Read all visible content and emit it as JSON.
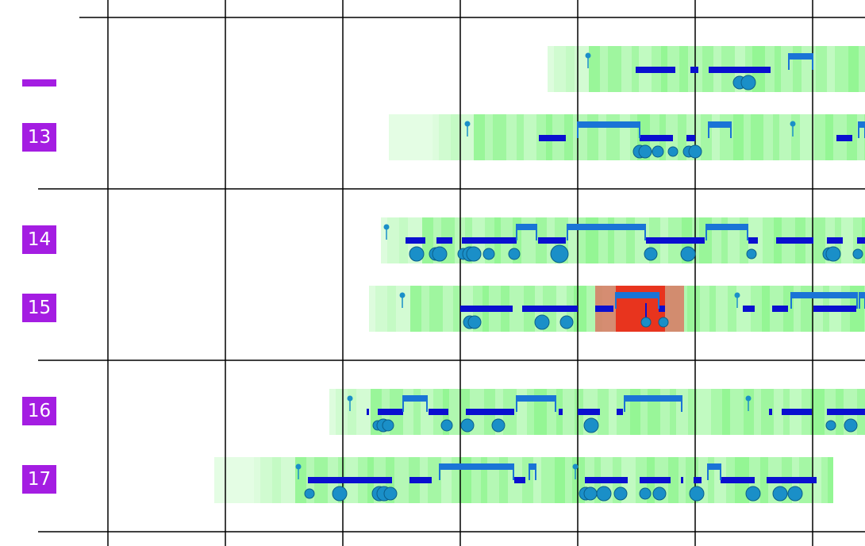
{
  "rows": [
    {
      "label": "",
      "bands": [
        {
          "from": 690,
          "to": 1090
        }
      ],
      "highlight": null
    },
    {
      "label": "13",
      "bands": [
        {
          "from": 490,
          "to": 545,
          "faint": true
        },
        {
          "from": 545,
          "to": 1090
        }
      ],
      "highlight": null
    },
    {
      "label": "14",
      "bands": [
        {
          "from": 480,
          "to": 1090
        }
      ],
      "highlight": null
    },
    {
      "label": "15",
      "bands": [
        {
          "from": 465,
          "to": 1090
        }
      ],
      "highlight": {
        "from": 750,
        "to": 862
      }
    },
    {
      "label": "16",
      "bands": [
        {
          "from": 415,
          "to": 1090
        }
      ],
      "highlight": null
    },
    {
      "label": "17",
      "bands": [
        {
          "from": 270,
          "to": 320,
          "faint": true
        },
        {
          "from": 320,
          "to": 1050
        }
      ],
      "highlight": null
    }
  ],
  "colors": {
    "label_bg": "#a41de2",
    "band": "#8ef58e",
    "band_light": "#c9fbc9",
    "highlight": "#e8341e",
    "bar": "#0a0fd0",
    "link": "#1a74d6",
    "node": "#1a8fc8",
    "grid": "#000000"
  }
}
